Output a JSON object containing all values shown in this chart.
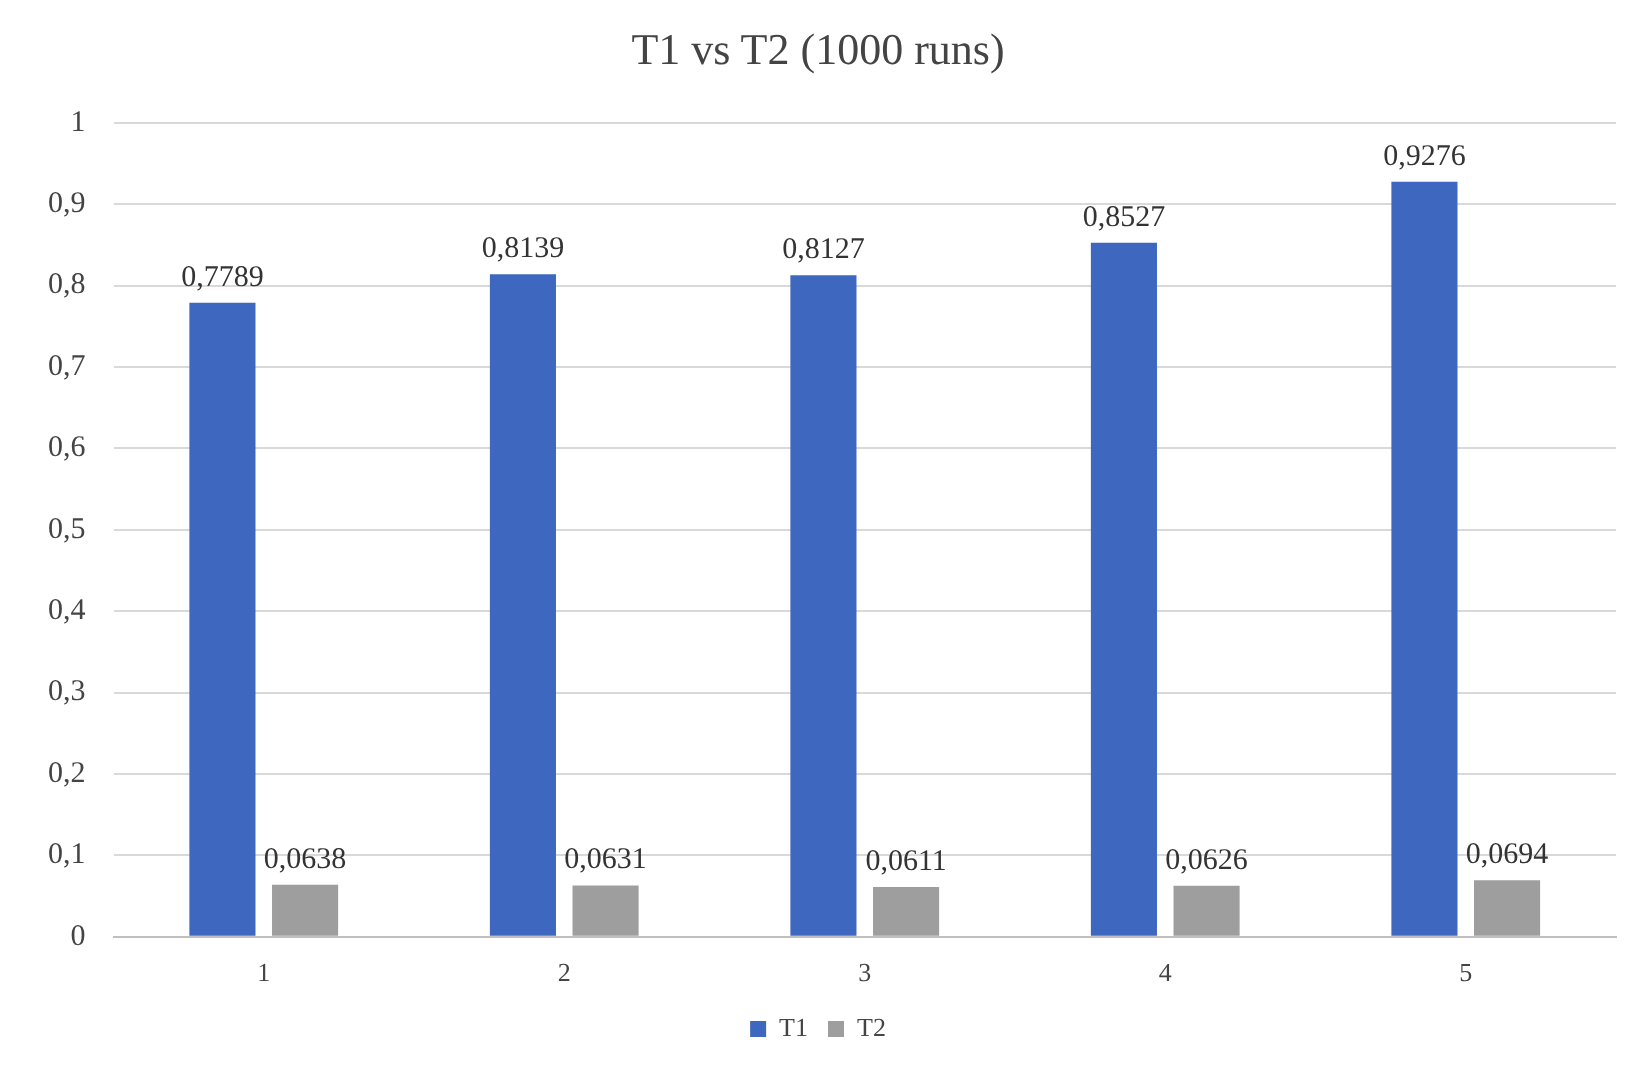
{
  "chart_data": {
    "type": "bar",
    "title": "T1 vs T2 (1000 runs)",
    "categories": [
      "1",
      "2",
      "3",
      "4",
      "5"
    ],
    "series": [
      {
        "name": "T1",
        "color": "#3e68c0",
        "values": [
          0.7789,
          0.8139,
          0.8127,
          0.8527,
          0.9276
        ],
        "value_labels": [
          "0,7789",
          "0,8139",
          "0,8127",
          "0,8527",
          "0,9276"
        ]
      },
      {
        "name": "T2",
        "color": "#9e9e9e",
        "values": [
          0.0638,
          0.0631,
          0.0611,
          0.0626,
          0.0694
        ],
        "value_labels": [
          "0,0638",
          "0,0631",
          "0,0611",
          "0,0626",
          "0,0694"
        ]
      }
    ],
    "ylim": [
      0,
      1
    ],
    "yticks": [
      {
        "value": 0,
        "label": "0"
      },
      {
        "value": 0.1,
        "label": "0,1"
      },
      {
        "value": 0.2,
        "label": "0,2"
      },
      {
        "value": 0.3,
        "label": "0,3"
      },
      {
        "value": 0.4,
        "label": "0,4"
      },
      {
        "value": 0.5,
        "label": "0,5"
      },
      {
        "value": 0.6,
        "label": "0,6"
      },
      {
        "value": 0.7,
        "label": "0,7"
      },
      {
        "value": 0.8,
        "label": "0,8"
      },
      {
        "value": 0.9,
        "label": "0,9"
      },
      {
        "value": 1,
        "label": "1"
      }
    ],
    "grid": "y",
    "legend": "bottom"
  }
}
